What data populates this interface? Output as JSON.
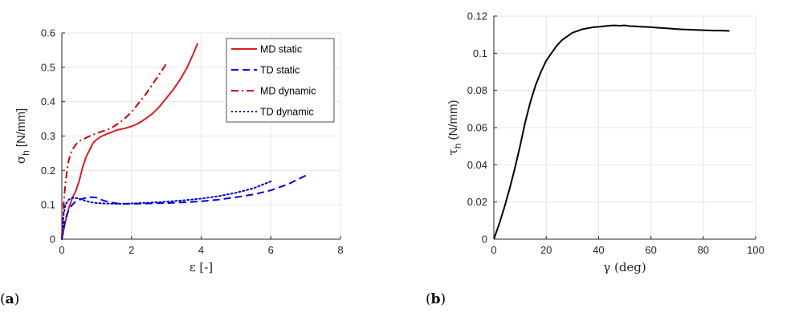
{
  "chart_data": [
    {
      "panel_label": "(a)",
      "type": "line",
      "xlabel": "ε [-]",
      "ylabel": "σ",
      "ylabel_sub": "h",
      "ylabel_unit": "[N/mm]",
      "xlim": [
        0,
        8
      ],
      "ylim": [
        0,
        0.6
      ],
      "xticks": [
        "0",
        "2",
        "4",
        "6",
        "8"
      ],
      "yticks": [
        "0",
        "0.1",
        "0.2",
        "0.3",
        "0.4",
        "0.5",
        "0.6"
      ],
      "grid": true,
      "legend_position": "top-right",
      "series": [
        {
          "name": "MD static",
          "color": "#e41a1c",
          "dash": "solid",
          "x": [
            0,
            0.1,
            0.2,
            0.3,
            0.4,
            0.5,
            0.6,
            0.7,
            0.8,
            0.9,
            1.0,
            1.1,
            1.2,
            1.4,
            1.6,
            1.8,
            2.0,
            2.2,
            2.4,
            2.6,
            2.8,
            3.0,
            3.2,
            3.4,
            3.6,
            3.8,
            3.9
          ],
          "y": [
            0,
            0.05,
            0.09,
            0.12,
            0.14,
            0.17,
            0.21,
            0.24,
            0.26,
            0.28,
            0.29,
            0.297,
            0.302,
            0.31,
            0.318,
            0.322,
            0.328,
            0.337,
            0.35,
            0.365,
            0.385,
            0.41,
            0.435,
            0.465,
            0.5,
            0.545,
            0.57
          ]
        },
        {
          "name": "TD static",
          "color": "#0000ee",
          "dash": "dashed",
          "x": [
            0,
            0.1,
            0.2,
            0.3,
            0.4,
            0.5,
            0.6,
            0.8,
            1.0,
            1.2,
            1.4,
            1.6,
            1.8,
            2.0,
            2.5,
            3.0,
            3.5,
            4.0,
            4.5,
            5.0,
            5.5,
            6.0,
            6.5,
            7.0
          ],
          "y": [
            0,
            0.06,
            0.085,
            0.1,
            0.11,
            0.115,
            0.118,
            0.122,
            0.121,
            0.112,
            0.107,
            0.104,
            0.103,
            0.103,
            0.104,
            0.105,
            0.107,
            0.11,
            0.115,
            0.122,
            0.13,
            0.142,
            0.16,
            0.185
          ]
        },
        {
          "name": "MD dynamic",
          "color": "#cc0000",
          "dash": "dashdot",
          "x": [
            0,
            0.05,
            0.1,
            0.15,
            0.2,
            0.3,
            0.4,
            0.5,
            0.6,
            0.8,
            1.0,
            1.2,
            1.4,
            1.6,
            1.8,
            2.0,
            2.2,
            2.4,
            2.6,
            2.8,
            3.0
          ],
          "y": [
            0,
            0.1,
            0.16,
            0.2,
            0.23,
            0.26,
            0.275,
            0.285,
            0.29,
            0.3,
            0.308,
            0.315,
            0.322,
            0.335,
            0.35,
            0.37,
            0.395,
            0.42,
            0.45,
            0.48,
            0.51
          ]
        },
        {
          "name": "TD dynamic",
          "color": "#0000cc",
          "dash": "dotted",
          "x": [
            0,
            0.05,
            0.1,
            0.2,
            0.3,
            0.4,
            0.5,
            0.6,
            0.8,
            1.0,
            1.2,
            1.5,
            1.8,
            2.0,
            2.5,
            3.0,
            3.5,
            4.0,
            4.5,
            5.0,
            5.5,
            6.0
          ],
          "y": [
            0,
            0.07,
            0.1,
            0.115,
            0.12,
            0.12,
            0.118,
            0.114,
            0.108,
            0.105,
            0.104,
            0.103,
            0.103,
            0.104,
            0.106,
            0.109,
            0.113,
            0.118,
            0.125,
            0.135,
            0.148,
            0.168
          ]
        }
      ]
    },
    {
      "panel_label": "(b)",
      "type": "line",
      "xlabel": "γ (deg)",
      "ylabel": "τ",
      "ylabel_sub": "h",
      "ylabel_unit": "(N/mm)",
      "xlim": [
        0,
        100
      ],
      "ylim": [
        0,
        0.12
      ],
      "xticks": [
        "0",
        "20",
        "40",
        "60",
        "80",
        "100"
      ],
      "yticks": [
        "0",
        "0.02",
        "0.04",
        "0.06",
        "0.08",
        "0.1",
        "0.12"
      ],
      "grid": true,
      "series": [
        {
          "color": "#000000",
          "dash": "solid",
          "x": [
            0,
            2,
            4,
            6,
            8,
            10,
            12,
            14,
            16,
            18,
            20,
            22,
            24,
            26,
            28,
            30,
            32,
            34,
            36,
            38,
            40,
            42,
            44,
            46,
            48,
            50,
            52,
            54,
            56,
            58,
            60,
            62,
            64,
            66,
            68,
            70,
            72,
            74,
            76,
            78,
            80,
            82,
            84,
            86,
            88,
            90
          ],
          "y": [
            0,
            0.008,
            0.017,
            0.027,
            0.038,
            0.05,
            0.063,
            0.074,
            0.083,
            0.09,
            0.096,
            0.1,
            0.104,
            0.107,
            0.109,
            0.111,
            0.112,
            0.113,
            0.1135,
            0.114,
            0.1142,
            0.1145,
            0.1148,
            0.115,
            0.1148,
            0.115,
            0.1146,
            0.1145,
            0.1143,
            0.1142,
            0.114,
            0.1138,
            0.1136,
            0.1134,
            0.1132,
            0.113,
            0.1128,
            0.1127,
            0.1126,
            0.1125,
            0.1124,
            0.1123,
            0.1122,
            0.1122,
            0.1121,
            0.112
          ]
        }
      ]
    }
  ]
}
